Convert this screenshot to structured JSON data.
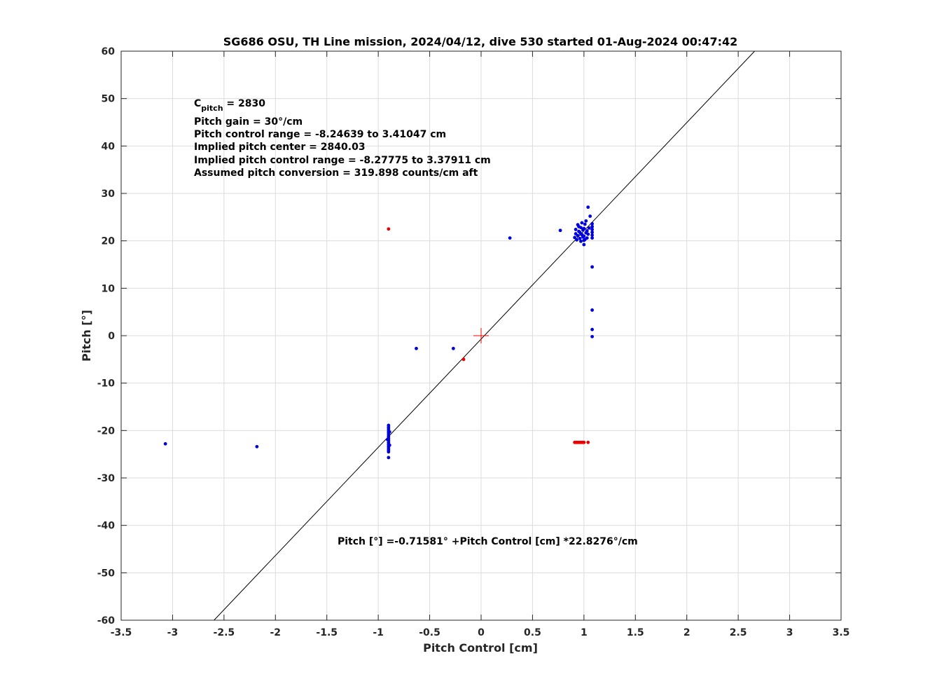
{
  "chart_data": {
    "type": "scatter",
    "title": "SG686 OSU, TH Line mission, 2024/04/12, dive 530 started 01-Aug-2024 00:47:42",
    "xlabel": "Pitch Control [cm]",
    "ylabel": "Pitch [°]",
    "xlim": [
      -3.5,
      3.5
    ],
    "ylim": [
      -60,
      60
    ],
    "x_ticks": [
      -3.5,
      -3,
      -2.5,
      -2,
      -1.5,
      -1,
      -0.5,
      0,
      0.5,
      1,
      1.5,
      2,
      2.5,
      3,
      3.5
    ],
    "x_tick_labels": [
      "-3.5",
      "-3",
      "-2.5",
      "-2",
      "-1.5",
      "-1",
      "-0.5",
      "0",
      "0.5",
      "1",
      "1.5",
      "2",
      "2.5",
      "3",
      "3.5"
    ],
    "y_ticks": [
      -60,
      -50,
      -40,
      -30,
      -20,
      -10,
      0,
      10,
      20,
      30,
      40,
      50,
      60
    ],
    "y_tick_labels": [
      "-60",
      "-50",
      "-40",
      "-30",
      "-20",
      "-10",
      "0",
      "10",
      "20",
      "30",
      "40",
      "50",
      "60"
    ],
    "grid": true,
    "colors": {
      "valid": "#0000dd",
      "excluded": "#ee0000",
      "fit": "#000000",
      "center": "#ee0000"
    },
    "fit_line": {
      "intercept": -0.71581,
      "slope": 22.8276
    },
    "center_marker": {
      "x": 0.0,
      "y": 0.0
    },
    "series": [
      {
        "color": "valid",
        "points": [
          [
            -3.07,
            -22.8
          ],
          [
            -2.18,
            -23.4
          ],
          [
            -0.63,
            -2.7
          ],
          [
            -0.27,
            -2.7
          ],
          [
            0.28,
            20.6
          ],
          [
            0.77,
            22.2
          ],
          [
            -0.9,
            -18.9
          ],
          [
            -0.9,
            -19.3
          ],
          [
            -0.9,
            -19.7
          ],
          [
            -0.9,
            -20.1
          ],
          [
            -0.9,
            -20.5
          ],
          [
            -0.9,
            -20.9
          ],
          [
            -0.9,
            -21.3
          ],
          [
            -0.9,
            -21.7
          ],
          [
            -0.9,
            -22.1
          ],
          [
            -0.9,
            -22.5
          ],
          [
            -0.9,
            -22.9
          ],
          [
            -0.9,
            -23.3
          ],
          [
            -0.9,
            -23.7
          ],
          [
            -0.9,
            -24.1
          ],
          [
            -0.9,
            -24.5
          ],
          [
            -0.89,
            -20.3
          ],
          [
            -0.91,
            -21.9
          ],
          [
            -0.89,
            -23.1
          ],
          [
            -0.9,
            -25.7
          ],
          [
            0.91,
            20.7
          ],
          [
            0.92,
            21.5
          ],
          [
            0.92,
            22.4
          ],
          [
            0.93,
            20.2
          ],
          [
            0.94,
            21.1
          ],
          [
            0.95,
            22.0
          ],
          [
            0.95,
            23.0
          ],
          [
            0.96,
            20.5
          ],
          [
            0.96,
            21.8
          ],
          [
            0.97,
            22.8
          ],
          [
            0.97,
            19.9
          ],
          [
            0.98,
            21.3
          ],
          [
            0.98,
            23.8
          ],
          [
            0.99,
            20.8
          ],
          [
            0.99,
            22.3
          ],
          [
            1.0,
            19.2
          ],
          [
            1.0,
            21.0
          ],
          [
            1.0,
            22.6
          ],
          [
            1.01,
            23.5
          ],
          [
            1.01,
            20.3
          ],
          [
            1.02,
            21.7
          ],
          [
            1.02,
            24.2
          ],
          [
            1.03,
            22.1
          ],
          [
            1.03,
            20.6
          ],
          [
            1.04,
            21.4
          ],
          [
            1.05,
            22.7
          ],
          [
            1.04,
            27.1
          ],
          [
            1.06,
            25.2
          ],
          [
            1.08,
            20.6
          ],
          [
            1.08,
            21.2
          ],
          [
            1.08,
            21.8
          ],
          [
            1.08,
            22.4
          ],
          [
            1.08,
            23.0
          ],
          [
            1.08,
            23.6
          ],
          [
            1.08,
            14.5
          ],
          [
            1.08,
            5.4
          ],
          [
            1.08,
            1.3
          ],
          [
            1.08,
            -0.2
          ],
          [
            0.94,
            23.4
          ],
          [
            0.97,
            21.5
          ],
          [
            1.0,
            20.1
          ]
        ]
      },
      {
        "color": "excluded",
        "points": [
          [
            -0.9,
            22.5
          ],
          [
            -0.17,
            -5.0
          ],
          [
            0.91,
            -22.5
          ],
          [
            0.92,
            -22.5
          ],
          [
            0.93,
            -22.5
          ],
          [
            0.94,
            -22.5
          ],
          [
            0.95,
            -22.5
          ],
          [
            0.96,
            -22.5
          ],
          [
            0.97,
            -22.5
          ],
          [
            0.98,
            -22.5
          ],
          [
            0.99,
            -22.5
          ],
          [
            1.0,
            -22.5
          ],
          [
            1.04,
            -22.5
          ]
        ]
      }
    ],
    "annotations": {
      "c_pitch_main": "C",
      "c_pitch_sub": "pitch",
      "c_pitch_value": " = 2830",
      "lines": [
        "Pitch gain = 30°/cm",
        "Pitch control range = -8.24639 to 3.41047 cm",
        "Implied pitch center = 2840.03",
        "Implied pitch control range = -8.27775 to 3.37911 cm",
        "Assumed pitch conversion = 319.898 counts/cm aft"
      ],
      "fit_equation": "Pitch [°] =-0.71581° +Pitch Control [cm] *22.8276°/cm"
    }
  }
}
